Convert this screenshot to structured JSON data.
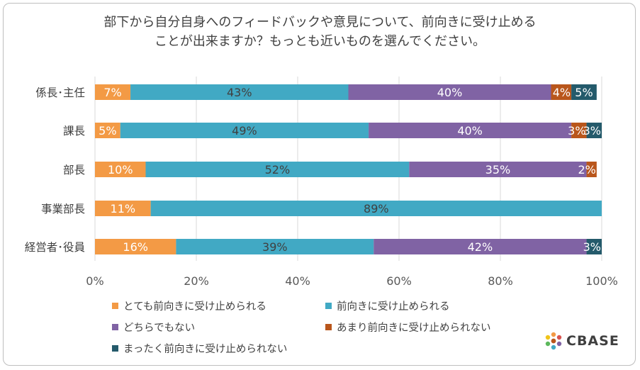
{
  "title": {
    "line1": "部下から自分自身へのフィードバックや意見について、前向きに受け止める",
    "line2": "ことが出来ますか？もっとも近いものを選んでください。"
  },
  "chart_data": {
    "type": "bar",
    "orientation": "horizontal",
    "stacked": true,
    "categories": [
      "係長･主任",
      "課長",
      "部長",
      "事業部長",
      "経営者･役員"
    ],
    "series": [
      {
        "name": "とても前向きに受け止められる",
        "color": "#f39a45",
        "values": [
          7,
          5,
          10,
          11,
          16
        ],
        "labels": [
          "7%",
          "5%",
          "10%",
          "11%",
          "16%"
        ]
      },
      {
        "name": "前向きに受け止められる",
        "color": "#41a9c4",
        "values": [
          43,
          49,
          52,
          89,
          39
        ],
        "labels": [
          "43%",
          "49%",
          "52%",
          "89%",
          "39%"
        ]
      },
      {
        "name": "どちらでもない",
        "color": "#8063a4",
        "values": [
          40,
          40,
          35,
          0,
          42
        ],
        "labels": [
          "40%",
          "40%",
          "35%",
          "",
          "42%"
        ]
      },
      {
        "name": "あまり前向きに受け止められない",
        "color": "#b9561b",
        "values": [
          4,
          3,
          2,
          0,
          0
        ],
        "labels": [
          "4%",
          "3%",
          "2%",
          "",
          ""
        ]
      },
      {
        "name": "まったく前向きに受け止められない",
        "color": "#245a6b",
        "values": [
          5,
          3,
          0,
          0,
          3
        ],
        "labels": [
          "5%",
          "3%",
          "",
          "",
          "3%"
        ]
      }
    ],
    "xlim": [
      0,
      100
    ],
    "xticks": [
      "0%",
      "20%",
      "40%",
      "60%",
      "80%",
      "100%"
    ],
    "grid": true,
    "legend_position": "bottom"
  },
  "logo": {
    "text": "CBASE"
  }
}
